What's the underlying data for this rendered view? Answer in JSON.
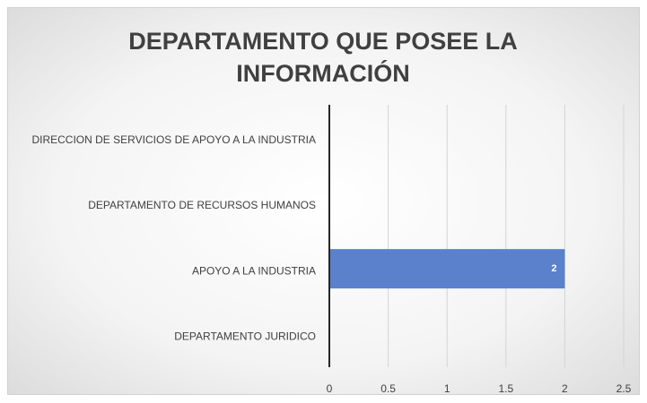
{
  "chart_data": {
    "type": "hbar",
    "title": "DEPARTAMENTO QUE POSEE LA INFORMACIÓN",
    "categories": [
      "DIRECCION DE SERVICIOS DE APOYO A LA INDUSTRIA",
      "DEPARTAMENTO DE RECURSOS HUMANOS",
      "APOYO A LA INDUSTRIA",
      "DEPARTAMENTO JURIDICO"
    ],
    "values": [
      null,
      null,
      2,
      null
    ],
    "color": "#5b80cc",
    "xlim": [
      0,
      2.5
    ],
    "xticks": [
      0,
      0.5,
      1,
      1.5,
      2,
      2.5
    ],
    "grid": true
  }
}
